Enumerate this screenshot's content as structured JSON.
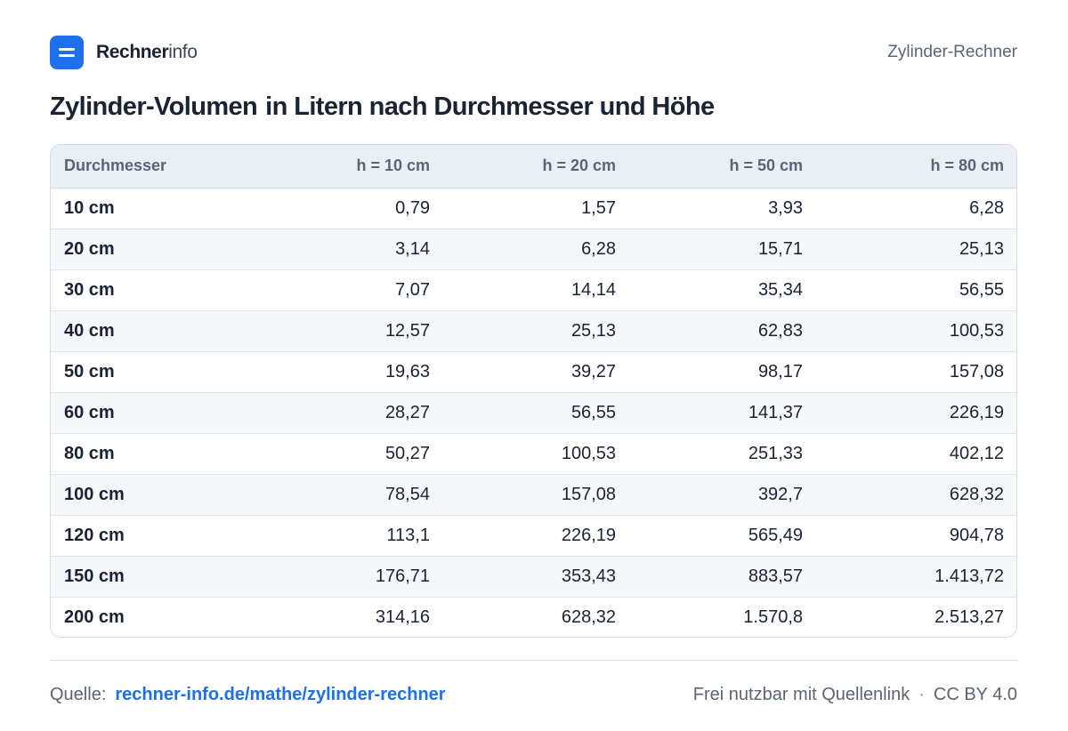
{
  "brand": {
    "name_strong": "Rechner",
    "name_light": "info"
  },
  "header": {
    "right_label": "Zylinder-Rechner"
  },
  "title": {
    "part1": "Zylinder-Volumen",
    "part2": "in Litern nach Durchmesser und Höhe"
  },
  "table": {
    "headers": [
      "Durchmesser",
      "h = 10 cm",
      "h = 20 cm",
      "h = 50 cm",
      "h = 80 cm"
    ],
    "rows": [
      [
        "10 cm",
        "0,79",
        "1,57",
        "3,93",
        "6,28"
      ],
      [
        "20 cm",
        "3,14",
        "6,28",
        "15,71",
        "25,13"
      ],
      [
        "30 cm",
        "7,07",
        "14,14",
        "35,34",
        "56,55"
      ],
      [
        "40 cm",
        "12,57",
        "25,13",
        "62,83",
        "100,53"
      ],
      [
        "50 cm",
        "19,63",
        "39,27",
        "98,17",
        "157,08"
      ],
      [
        "60 cm",
        "28,27",
        "56,55",
        "141,37",
        "226,19"
      ],
      [
        "80 cm",
        "50,27",
        "100,53",
        "251,33",
        "402,12"
      ],
      [
        "100 cm",
        "78,54",
        "157,08",
        "392,7",
        "628,32"
      ],
      [
        "120 cm",
        "113,1",
        "226,19",
        "565,49",
        "904,78"
      ],
      [
        "150 cm",
        "176,71",
        "353,43",
        "883,57",
        "1.413,72"
      ],
      [
        "200 cm",
        "314,16",
        "628,32",
        "1.570,8",
        "2.513,27"
      ]
    ]
  },
  "footer": {
    "source_label": "Quelle:",
    "source_link": "rechner-info.de/mathe/zylinder-rechner",
    "license_text": "Frei nutzbar mit Quellenlink",
    "separator": "·",
    "license": "CC BY 4.0"
  },
  "colors": {
    "accent": "#1f6feb",
    "text": "#1a2333",
    "muted": "#5b6473",
    "header_bg": "#eaeff6",
    "stripe_bg": "#f5f7fb",
    "border": "#d5dbe5"
  },
  "icons": {
    "logo": "equals-icon"
  }
}
